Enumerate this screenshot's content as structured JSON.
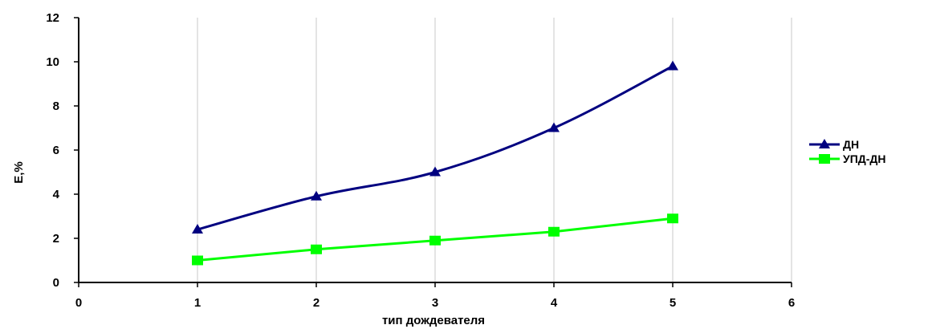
{
  "chart_data": {
    "type": "line",
    "title": "",
    "xlabel": "тип дождевателя",
    "ylabel": "Е,%",
    "xlim": [
      0,
      6
    ],
    "ylim": [
      0,
      12
    ],
    "x_ticks": [
      "0",
      "1",
      "2",
      "3",
      "4",
      "5",
      "6"
    ],
    "y_ticks": [
      "0",
      "2",
      "4",
      "6",
      "8",
      "10",
      "12"
    ],
    "grid": "vertical",
    "legend_position": "right",
    "series": [
      {
        "name": "ДН",
        "color": "#000080",
        "marker": "triangle",
        "x": [
          1,
          2,
          3,
          4,
          5
        ],
        "y": [
          2.4,
          3.9,
          5.0,
          7.0,
          9.8
        ]
      },
      {
        "name": "УПД-ДН",
        "color": "#00ff00",
        "marker": "square",
        "x": [
          1,
          2,
          3,
          4,
          5
        ],
        "y": [
          1.0,
          1.5,
          1.9,
          2.3,
          2.9
        ]
      }
    ]
  }
}
